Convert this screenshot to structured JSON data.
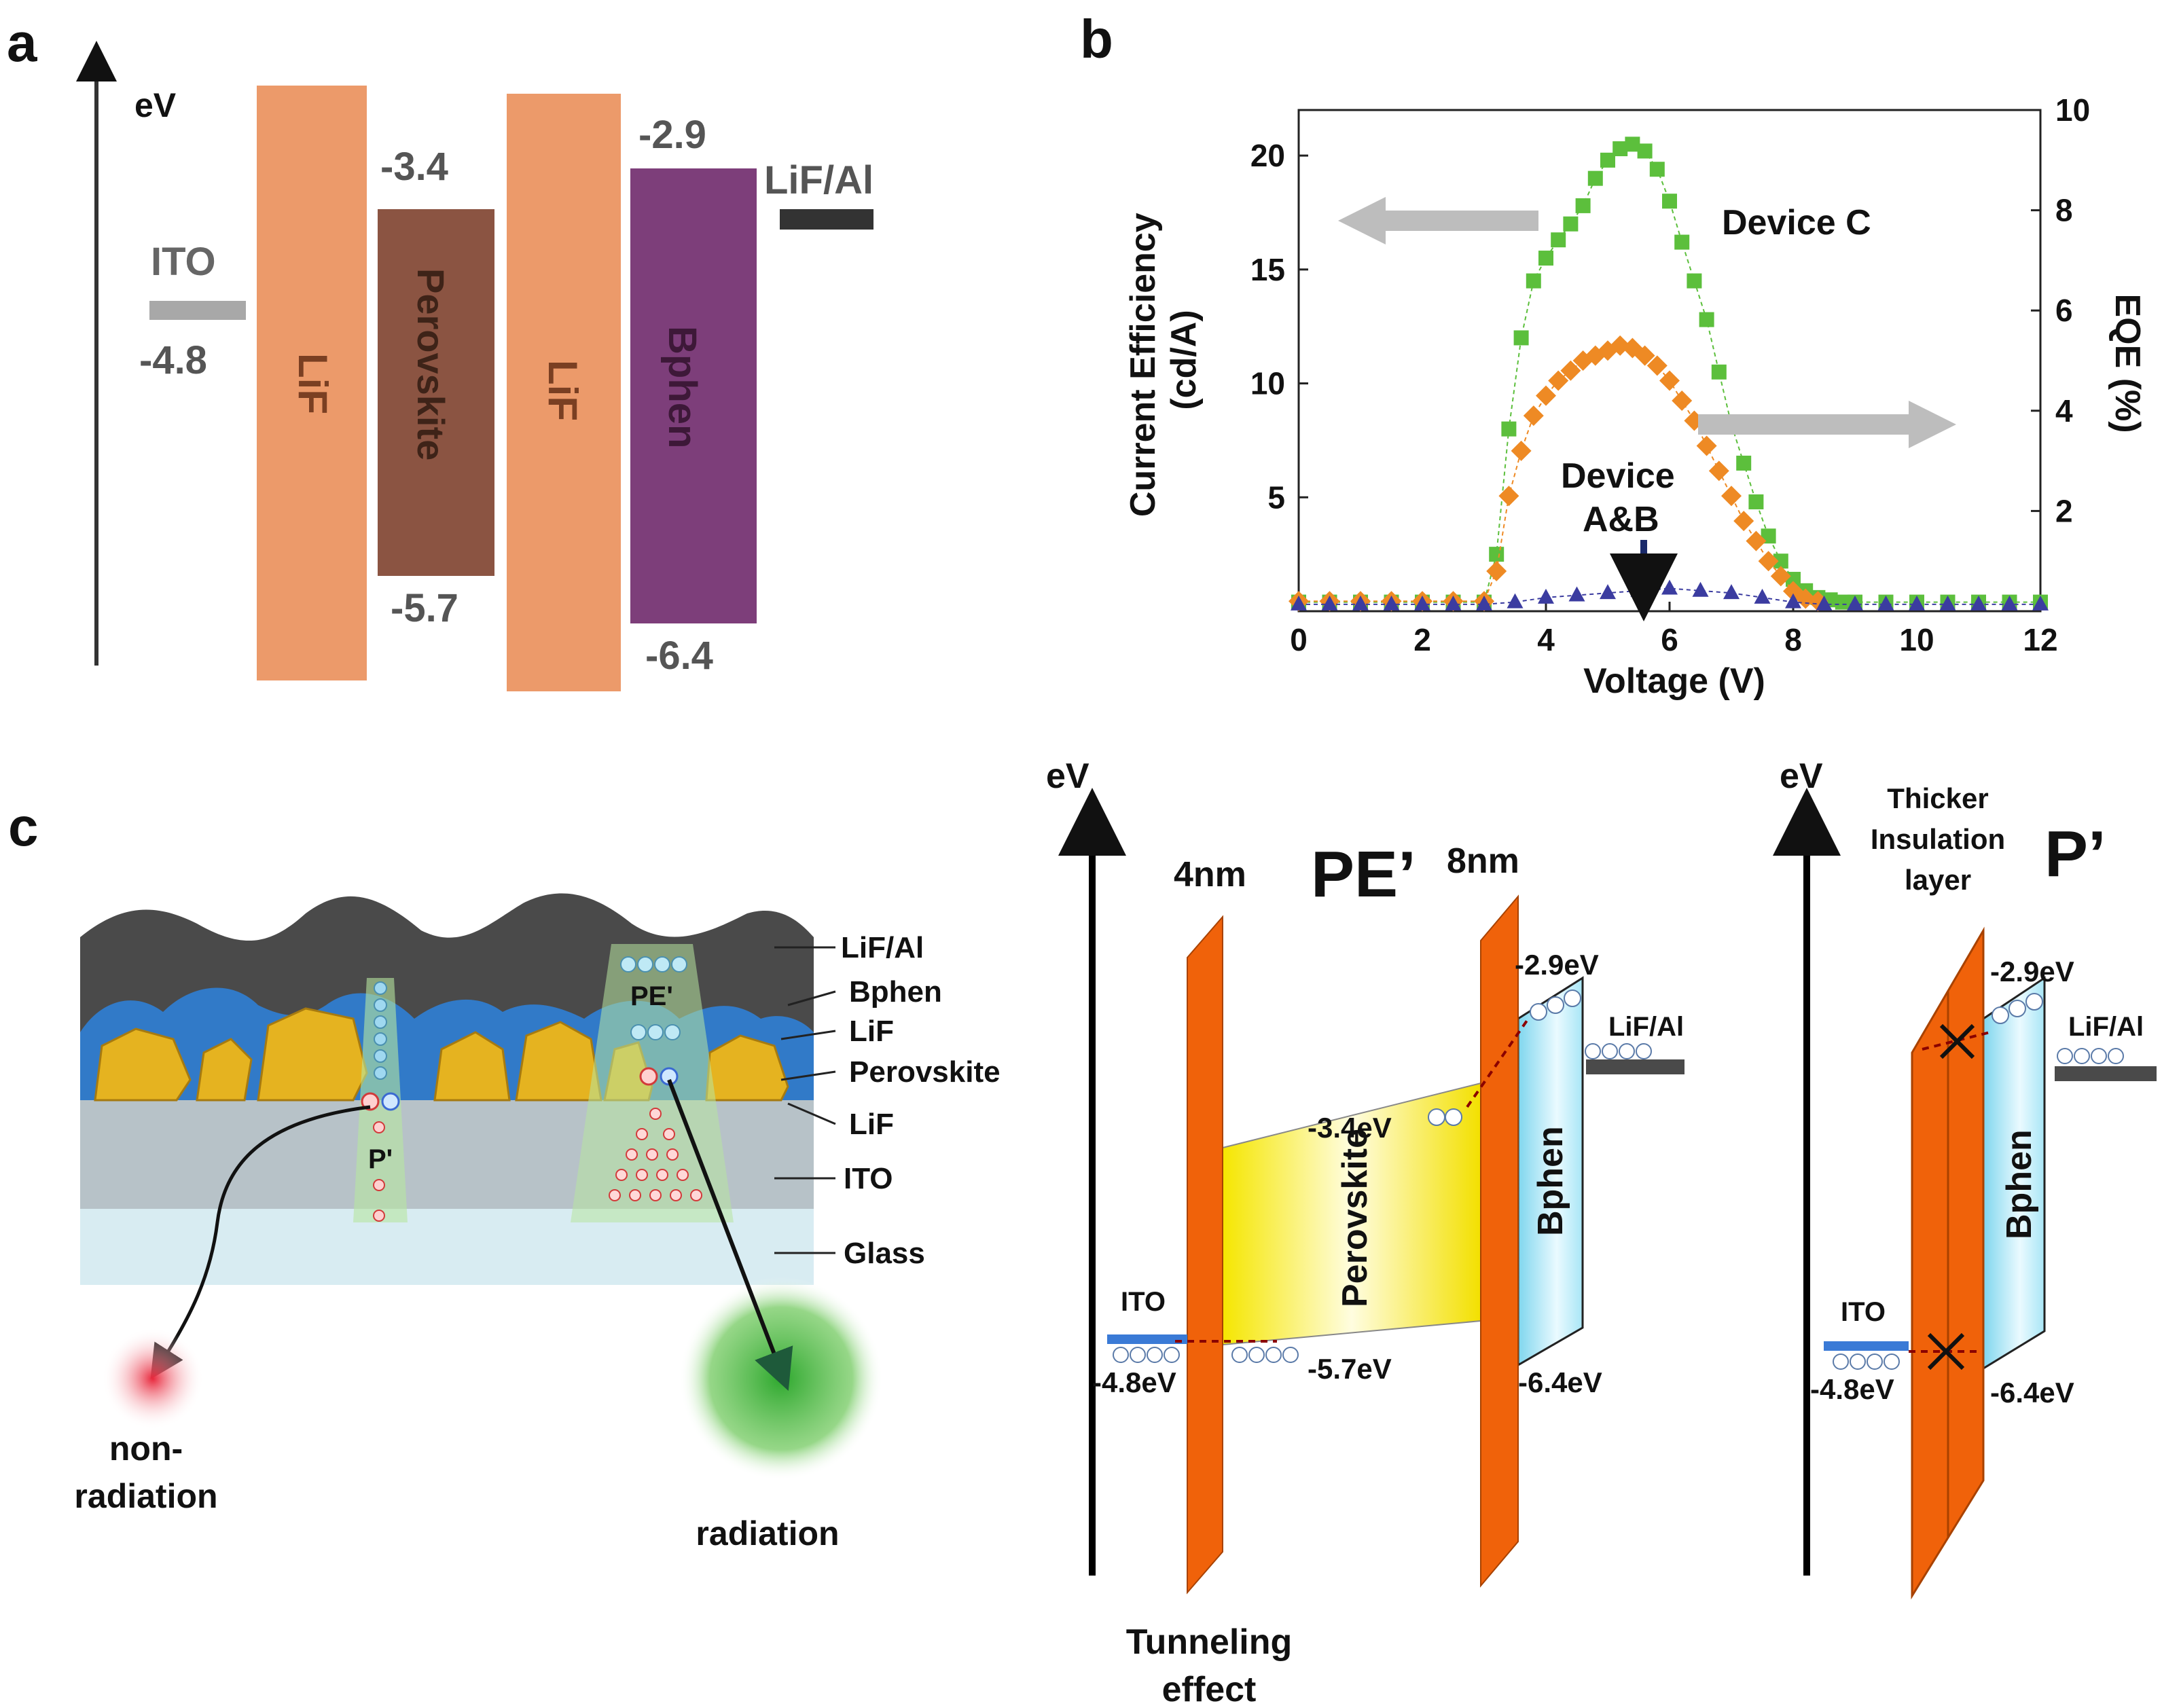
{
  "panel_a": {
    "label": "a",
    "axis_unit": "eV",
    "ito_label": "ITO",
    "ito_value": "-4.8",
    "lif_label": "LiF",
    "perovskite_label": "Perovskite",
    "perovskite_lumo": "-3.4",
    "perovskite_homo": "-5.7",
    "bphen_label": "Bphen",
    "bphen_lumo": "-2.9",
    "bphen_homo": "-6.4",
    "cathode_label": "LiF/Al",
    "colors": {
      "lif": "#ec9a6a",
      "perovskite": "#8b5442",
      "bphen": "#7d3e7a",
      "ito": "#a8a8a8",
      "cathode": "#333333"
    }
  },
  "panel_b": {
    "label": "b",
    "device_c_label": "Device C",
    "device_ab_label_line1": "Device",
    "device_ab_label_line2": "A&B"
  },
  "chart_data": {
    "type": "scatter",
    "title": "",
    "xlabel": "Voltage (V)",
    "ylabel": "Current Efficiency (cd/A)",
    "y2label": "EQE (%)",
    "xlim": [
      0,
      12
    ],
    "ylim": [
      0,
      22
    ],
    "y2lim": [
      0,
      10
    ],
    "x_ticks": [
      "0",
      "2",
      "4",
      "6",
      "8",
      "10",
      "12"
    ],
    "y_ticks": [
      "5",
      "10",
      "15",
      "20"
    ],
    "y2_ticks": [
      "2",
      "4",
      "6",
      "8",
      "10"
    ],
    "x_tick_values": [
      0,
      2,
      4,
      6,
      8,
      10,
      12
    ],
    "y_tick_values": [
      5,
      10,
      15,
      20
    ],
    "y2_tick_values": [
      2,
      4,
      6,
      8,
      10
    ],
    "series": [
      {
        "name": "Device C",
        "marker": "square",
        "color": "#5cbf3c",
        "x": [
          0,
          0.5,
          1,
          1.5,
          2,
          2.5,
          3,
          3.2,
          3.4,
          3.6,
          3.8,
          4.0,
          4.2,
          4.4,
          4.6,
          4.8,
          5.0,
          5.2,
          5.4,
          5.6,
          5.8,
          6.0,
          6.2,
          6.4,
          6.6,
          6.8,
          7.0,
          7.2,
          7.4,
          7.6,
          7.8,
          8.0,
          8.2,
          8.4,
          8.6,
          8.8,
          9.0,
          9.5,
          10,
          10.5,
          11,
          11.5,
          12
        ],
        "y": [
          0.4,
          0.4,
          0.4,
          0.4,
          0.4,
          0.4,
          0.4,
          2.5,
          8.0,
          12.0,
          14.5,
          15.5,
          16.3,
          17.0,
          17.8,
          19.0,
          19.8,
          20.3,
          20.5,
          20.2,
          19.4,
          18.0,
          16.2,
          14.5,
          12.8,
          10.5,
          8.2,
          6.5,
          4.8,
          3.3,
          2.2,
          1.4,
          0.9,
          0.6,
          0.5,
          0.4,
          0.4,
          0.4,
          0.4,
          0.4,
          0.4,
          0.4,
          0.4
        ]
      },
      {
        "name": "Device C (EQE)",
        "marker": "diamond",
        "color": "#ee8a24",
        "x": [
          0,
          0.5,
          1,
          1.5,
          2,
          2.5,
          3,
          3.2,
          3.4,
          3.6,
          3.8,
          4.0,
          4.2,
          4.4,
          4.6,
          4.8,
          5.0,
          5.2,
          5.4,
          5.6,
          5.8,
          6.0,
          6.2,
          6.4,
          6.6,
          6.8,
          7.0,
          7.2,
          7.4,
          7.6,
          7.8,
          8.0,
          8.2,
          8.4
        ],
        "y": [
          0.2,
          0.2,
          0.2,
          0.2,
          0.2,
          0.2,
          0.2,
          0.8,
          2.3,
          3.2,
          3.9,
          4.3,
          4.6,
          4.8,
          5.0,
          5.1,
          5.2,
          5.3,
          5.25,
          5.1,
          4.9,
          4.6,
          4.2,
          3.8,
          3.3,
          2.8,
          2.3,
          1.8,
          1.4,
          1.0,
          0.7,
          0.4,
          0.25,
          0.2
        ]
      },
      {
        "name": "Device A&B",
        "marker": "triangle",
        "color": "#3b3ca0",
        "x": [
          0,
          0.5,
          1,
          1.5,
          2,
          2.5,
          3,
          3.5,
          4,
          4.5,
          5,
          5.5,
          6,
          6.5,
          7,
          7.5,
          8,
          8.5,
          9,
          9.5,
          10,
          10.5,
          11,
          11.5,
          12
        ],
        "y": [
          0.3,
          0.3,
          0.3,
          0.3,
          0.3,
          0.3,
          0.3,
          0.4,
          0.6,
          0.7,
          0.8,
          0.9,
          1.0,
          0.9,
          0.8,
          0.6,
          0.4,
          0.3,
          0.3,
          0.3,
          0.3,
          0.3,
          0.3,
          0.3,
          0.3
        ]
      }
    ]
  },
  "panel_c": {
    "label": "c",
    "layers": [
      "LiF/Al",
      "Bphen",
      "LiF",
      "Perovskite",
      "LiF",
      "ITO",
      "Glass"
    ],
    "pe_prime": "PE'",
    "p_prime": "P'",
    "nonradiation_line1": "non-",
    "nonradiation_line2": "radiation",
    "radiation": "radiation"
  },
  "panel_c_mid": {
    "axis_unit": "eV",
    "title": "PE’",
    "thickness_left": "4nm",
    "thickness_right": "8nm",
    "perovskite_lumo": "-3.4eV",
    "perovskite_homo": "-5.7eV",
    "bphen_lumo": "-2.9eV",
    "bphen_homo": "-6.4eV",
    "ito": "ITO",
    "ito_value": "-4.8eV",
    "cathode": "LiF/Al",
    "perovskite": "Perovskite",
    "bphen": "Bphen",
    "tunneling_line1": "Tunneling",
    "tunneling_line2": "effect"
  },
  "panel_c_right": {
    "axis_unit": "eV",
    "title": "P’",
    "note_line1": "Thicker",
    "note_line2": "Insulation",
    "note_line3": "layer",
    "bphen_lumo": "-2.9eV",
    "bphen_homo": "-6.4eV",
    "ito": "ITO",
    "ito_value": "-4.8eV",
    "cathode": "LiF/Al",
    "bphen": "Bphen"
  }
}
